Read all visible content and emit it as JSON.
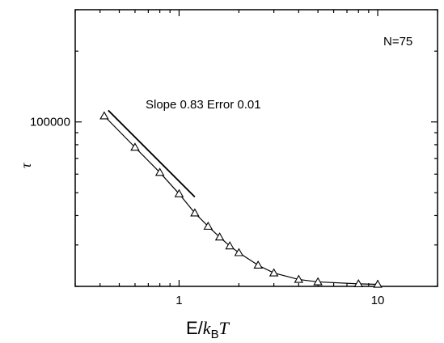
{
  "chart_data": {
    "type": "scatter",
    "xlabel": {
      "prefix": "E/",
      "k": "k",
      "sub": "B",
      "T": "T"
    },
    "ylabel": "τ",
    "xscale": "log",
    "yscale": "log",
    "xlim": [
      0.3,
      20
    ],
    "ylim": [
      20000,
      300000
    ],
    "x_ticks": [
      1,
      10
    ],
    "x_tick_labels": [
      "1",
      "10"
    ],
    "y_ticks": [
      100000
    ],
    "y_tick_labels": [
      "100000"
    ],
    "grid": false,
    "legend": "none",
    "annotations": [
      {
        "text": "N=75",
        "position": "top-right"
      },
      {
        "text": "Slope 0.83 Error 0.01",
        "position": "upper-middle"
      }
    ],
    "series": [
      {
        "marker": "open-triangle",
        "x": [
          0.42,
          0.6,
          0.8,
          1.0,
          1.2,
          1.4,
          1.6,
          1.8,
          2.0,
          2.5,
          3.0,
          4.0,
          5.0,
          8.0,
          10.0
        ],
        "y": [
          106000,
          78000,
          61000,
          49500,
          41000,
          36000,
          32400,
          29700,
          27800,
          24600,
          22800,
          21400,
          20900,
          20500,
          20400
        ]
      }
    ],
    "fit_line": {
      "x": [
        0.44,
        1.2
      ],
      "y": [
        112000,
        48000
      ],
      "color": "#000000"
    }
  }
}
